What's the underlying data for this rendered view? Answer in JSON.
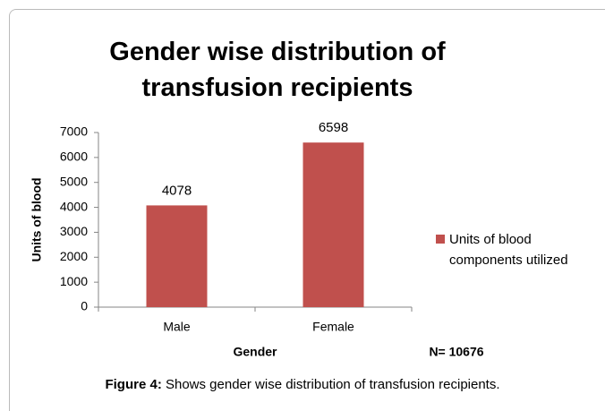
{
  "chart_data": {
    "type": "bar",
    "title": "Gender wise distribution of transfusion recipients",
    "categories": [
      "Male",
      "Female"
    ],
    "series": [
      {
        "name": "Units of blood components utilized",
        "color": "#c0504d",
        "values": [
          4078,
          6598
        ]
      }
    ],
    "ylim": [
      0,
      7000
    ],
    "yticks": [
      0,
      1000,
      2000,
      3000,
      4000,
      5000,
      6000,
      7000
    ],
    "y_label": "Units of blood",
    "x_label": "Gender",
    "annotation": "N= 10676",
    "data_labels": true,
    "legend": "right"
  },
  "caption": {
    "label": "Figure 4:",
    "text": " Shows gender wise distribution of transfusion recipients."
  }
}
